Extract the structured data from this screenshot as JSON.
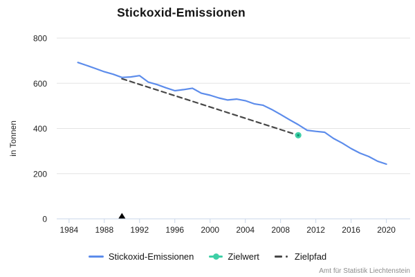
{
  "title": "Stickoxid-Emissionen",
  "y_axis_label": "in Tonnen",
  "footer": "Amt für Statistik Liechtenstein",
  "colors": {
    "line": "#5c8ceb",
    "target": "#3ecfa6",
    "target_center": "#10936f",
    "path": "#474747",
    "grid": "#e3e3e3",
    "axis": "#c9d6e8",
    "tick_label": "#1f1f1f",
    "marker": "#000000",
    "footer_text": "#8b8b8b"
  },
  "legend": [
    {
      "label": "Stickoxid-Emissionen",
      "swatch": "line"
    },
    {
      "label": "Zielwert",
      "swatch": "point"
    },
    {
      "label": "Zielpfad",
      "swatch": "dashed"
    }
  ],
  "chart_data": {
    "type": "line",
    "title": "Stickoxid-Emissionen",
    "xlabel": "",
    "ylabel": "in Tonnen",
    "xlim": [
      1982.6,
      2022.7
    ],
    "ylim": [
      0,
      800
    ],
    "x_ticks": [
      1984,
      1988,
      1992,
      1996,
      2000,
      2004,
      2008,
      2012,
      2016,
      2020
    ],
    "y_ticks": [
      0,
      200,
      400,
      600,
      800
    ],
    "grid": "horizontal",
    "legend_position": "bottom",
    "series": [
      {
        "name": "Zielpfad",
        "type": "dashed-line",
        "color": "#474747",
        "x": [
          1990,
          2010
        ],
        "values": [
          620,
          370
        ]
      },
      {
        "name": "Stickoxid-Emissionen",
        "type": "line",
        "color": "#5c8ceb",
        "x": [
          1985,
          1986,
          1987,
          1988,
          1989,
          1990,
          1991,
          1992,
          1993,
          1994,
          1995,
          1996,
          1997,
          1998,
          1999,
          2000,
          2001,
          2002,
          2003,
          2004,
          2005,
          2006,
          2007,
          2008,
          2009,
          2010,
          2011,
          2012,
          2013,
          2014,
          2015,
          2016,
          2017,
          2018,
          2019,
          2020
        ],
        "values": [
          692,
          679,
          665,
          651,
          640,
          626,
          628,
          634,
          605,
          594,
          580,
          567,
          572,
          578,
          556,
          547,
          535,
          526,
          530,
          523,
          509,
          503,
          484,
          462,
          439,
          417,
          392,
          387,
          383,
          356,
          335,
          311,
          291,
          276,
          255,
          242
        ]
      },
      {
        "name": "Zielwert",
        "type": "point",
        "color": "#3ecfa6",
        "x": [
          2010
        ],
        "values": [
          370
        ]
      }
    ],
    "annotations": [
      {
        "type": "triangle-marker",
        "label": "base-year-marker",
        "x": 1990,
        "y": 0,
        "color": "#000000"
      }
    ]
  }
}
